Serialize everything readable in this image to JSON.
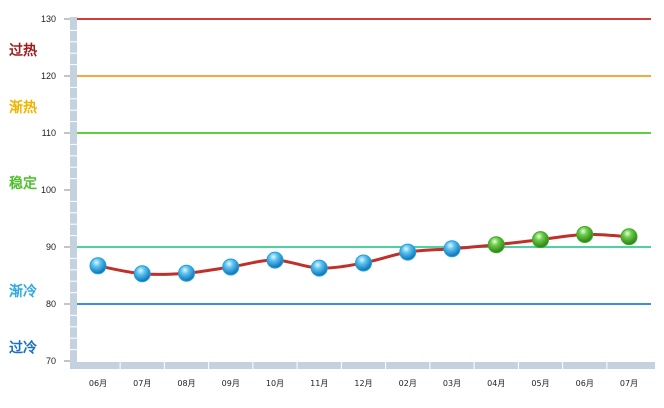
{
  "chart_data": {
    "type": "line",
    "title": "",
    "xlabel": "",
    "ylabel": "",
    "ylim": [
      70,
      130
    ],
    "yticks": [
      70,
      80,
      90,
      100,
      110,
      120,
      130
    ],
    "categories": [
      "06月",
      "07月",
      "08月",
      "09月",
      "10月",
      "11月",
      "12月",
      "02月",
      "03月",
      "04月",
      "05月",
      "06月",
      "07月"
    ],
    "series": [
      {
        "values": [
          86.7,
          85.3,
          85.4,
          86.5,
          87.7,
          86.3,
          87.2,
          89.1,
          89.7,
          90.4,
          91.3,
          92.2,
          91.8
        ],
        "line_color": "#c0302a",
        "marker_colors": [
          "#1ea0e0",
          "#1ea0e0",
          "#1ea0e0",
          "#1ea0e0",
          "#1ea0e0",
          "#1ea0e0",
          "#1ea0e0",
          "#1ea0e0",
          "#1ea0e0",
          "#3aaa28",
          "#3aaa28",
          "#3aaa28",
          "#3aaa28"
        ]
      }
    ],
    "reference_lines": [
      {
        "y": 130,
        "color": "#d43c3c"
      },
      {
        "y": 120,
        "color": "#f5a83c"
      },
      {
        "y": 110,
        "color": "#5ccf3c"
      },
      {
        "y": 90,
        "color": "#4fd0a0"
      },
      {
        "y": 80,
        "color": "#3c8fe0"
      }
    ],
    "zone_labels": [
      {
        "text": "过热",
        "y": 124.6,
        "color": "#9b1c1c"
      },
      {
        "text": "渐热",
        "y": 114.6,
        "color": "#f0b400"
      },
      {
        "text": "稳定",
        "y": 101.2,
        "color": "#50c030"
      },
      {
        "text": "渐冷",
        "y": 82.3,
        "color": "#30a8e0"
      },
      {
        "text": "过冷",
        "y": 72.4,
        "color": "#1a6fc0"
      }
    ],
    "grid": false,
    "legend": "none"
  }
}
